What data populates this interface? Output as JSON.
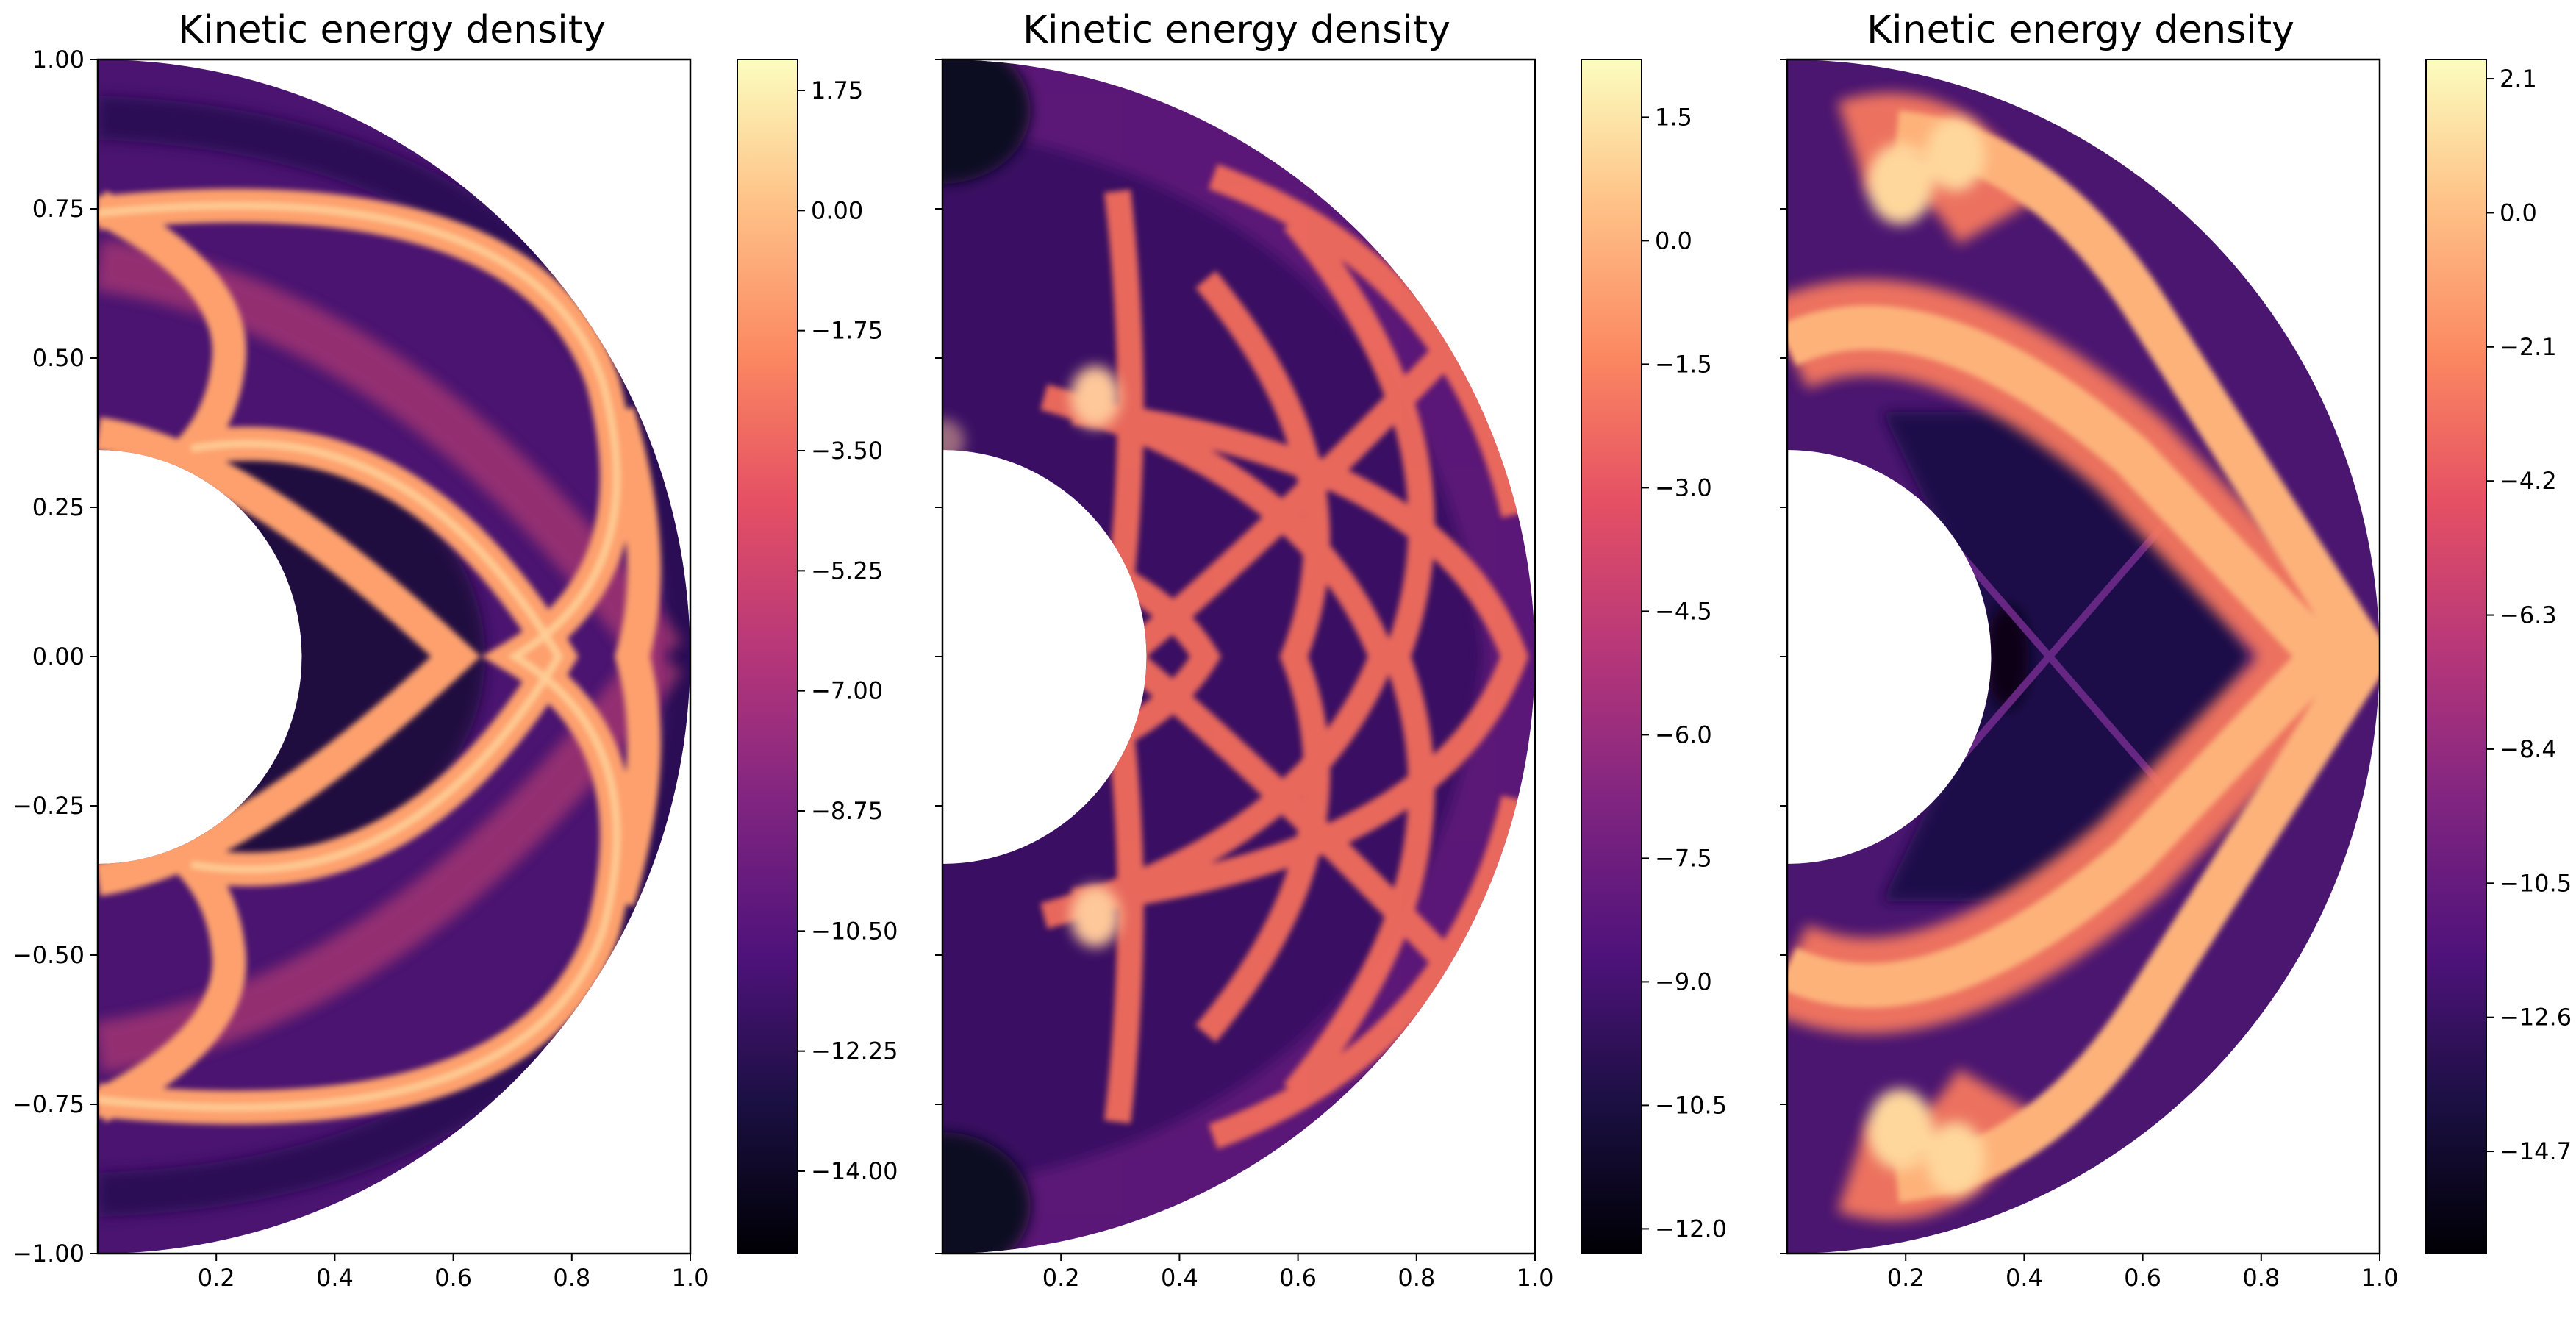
{
  "chart_data": [
    {
      "type": "heatmap",
      "title": "Kinetic energy density",
      "xlim": [
        0,
        1.0
      ],
      "ylim": [
        -1.0,
        1.0
      ],
      "xticks": [
        "0.2",
        "0.4",
        "0.6",
        "0.8",
        "1.0"
      ],
      "yticks": [
        "1.00",
        "0.75",
        "0.50",
        "0.25",
        "0.00",
        "−0.25",
        "−0.50",
        "−0.75",
        "−1.00"
      ],
      "inner_radius": 0.34,
      "outer_radius": 1.0,
      "colormap": "magma",
      "colorbar": {
        "range": [
          -15.2,
          2.2
        ],
        "ticks": [
          1.75,
          0.0,
          -1.75,
          -3.5,
          -5.25,
          -7.0,
          -8.75,
          -10.5,
          -12.25,
          -14.0
        ],
        "tick_labels": [
          "1.75",
          "0.00",
          "−1.75",
          "−3.50",
          "−5.25",
          "−7.00",
          "−8.75",
          "−10.50",
          "−12.25",
          "−14.00"
        ]
      },
      "features": "bright wavefront arcs reflecting between inner and outer boundaries; two arcs crossing near x=0.75 on the axis"
    },
    {
      "type": "heatmap",
      "title": "Kinetic energy density",
      "xlim": [
        0,
        1.0
      ],
      "ylim": [
        -1.0,
        1.0
      ],
      "xticks": [
        "0.2",
        "0.4",
        "0.6",
        "0.8",
        "1.0"
      ],
      "yticks": [],
      "inner_radius": 0.34,
      "outer_radius": 1.0,
      "colormap": "magma",
      "colorbar": {
        "range": [
          -12.3,
          2.2
        ],
        "ticks": [
          1.5,
          0.0,
          -1.5,
          -3.0,
          -4.5,
          -6.0,
          -7.5,
          -9.0,
          -10.5,
          -12.0
        ],
        "tick_labels": [
          "1.5",
          "0.0",
          "−1.5",
          "−3.0",
          "−4.5",
          "−6.0",
          "−7.5",
          "−9.0",
          "−10.5",
          "−12.0"
        ]
      },
      "features": "multiple crossing reflected wavefronts forming a lattice of bright arcs"
    },
    {
      "type": "heatmap",
      "title": "Kinetic energy density",
      "xlim": [
        0,
        1.0
      ],
      "ylim": [
        -1.0,
        1.0
      ],
      "xticks": [
        "0.2",
        "0.4",
        "0.6",
        "0.8",
        "1.0"
      ],
      "yticks": [],
      "inner_radius": 0.34,
      "outer_radius": 1.0,
      "colormap": "magma",
      "colorbar": {
        "range": [
          -16.3,
          2.4
        ],
        "ticks": [
          2.1,
          0.0,
          -2.1,
          -4.2,
          -6.3,
          -8.4,
          -10.5,
          -12.6,
          -14.7
        ],
        "tick_labels": [
          "2.1",
          "0.0",
          "−2.1",
          "−4.2",
          "−6.3",
          "−8.4",
          "−10.5",
          "−12.6",
          "−14.7"
        ]
      },
      "features": "broad chevron-shaped bright band meeting at x=0.9 on the axis; faint X crossing at x=0.5"
    }
  ]
}
